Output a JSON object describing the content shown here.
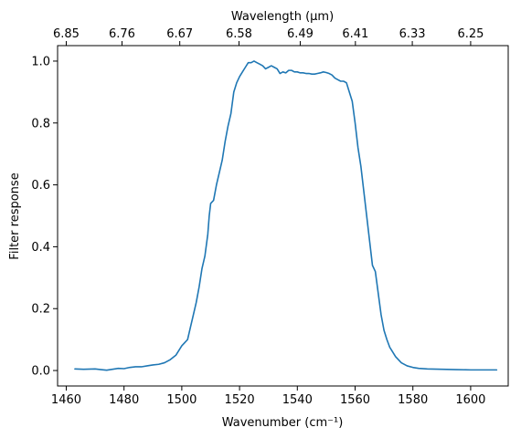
{
  "chart_data": {
    "type": "line",
    "title": "",
    "xlabel": "Wavenumber (cm⁻¹)",
    "ylabel": "Filter response",
    "top_xlabel": "Wavelength (μm)",
    "xlim": [
      1457,
      1613
    ],
    "ylim": [
      -0.05,
      1.05
    ],
    "xticks": [
      1460,
      1480,
      1500,
      1520,
      1540,
      1560,
      1580,
      1600
    ],
    "xtick_labels": [
      "1460",
      "1480",
      "1500",
      "1520",
      "1540",
      "1560",
      "1580",
      "1600"
    ],
    "yticks": [
      0.0,
      0.2,
      0.4,
      0.6,
      0.8,
      1.0
    ],
    "ytick_labels": [
      "0.0",
      "0.2",
      "0.4",
      "0.6",
      "0.8",
      "1.0"
    ],
    "top_xticks": [
      1460,
      1479.3,
      1499.3,
      1519.8,
      1541.0,
      1560.1,
      1579.8,
      1600.0
    ],
    "top_xtick_labels": [
      "6.85",
      "6.76",
      "6.67",
      "6.58",
      "6.49",
      "6.41",
      "6.33",
      "6.25"
    ],
    "grid": false,
    "line_color": "#1f77b4",
    "series": [
      {
        "x": [
          1463,
          1466,
          1470,
          1472,
          1474,
          1476,
          1478,
          1480,
          1482,
          1484,
          1486,
          1488,
          1490,
          1492,
          1494,
          1496,
          1498,
          1500,
          1501,
          1502,
          1503,
          1504,
          1505,
          1506,
          1507,
          1508,
          1509,
          1509.5,
          1510,
          1511,
          1512,
          1513,
          1514,
          1515,
          1516,
          1517,
          1518,
          1519,
          1520,
          1521,
          1522,
          1523,
          1524,
          1525,
          1526,
          1527,
          1528,
          1529,
          1530,
          1531,
          1532,
          1533,
          1534,
          1535,
          1536,
          1537,
          1538,
          1539,
          1540,
          1541,
          1542,
          1543,
          1544,
          1545,
          1546,
          1547,
          1548,
          1549,
          1550,
          1551,
          1552,
          1553,
          1554,
          1555,
          1556,
          1557,
          1558,
          1559,
          1560,
          1561,
          1562,
          1563,
          1564,
          1565,
          1566,
          1567,
          1568,
          1569,
          1570,
          1571,
          1572,
          1573,
          1574,
          1575,
          1576,
          1578,
          1580,
          1582,
          1585,
          1590,
          1595,
          1600,
          1605,
          1609
        ],
        "y": [
          0.005,
          0.004,
          0.005,
          0.003,
          0.001,
          0.004,
          0.007,
          0.006,
          0.01,
          0.012,
          0.012,
          0.015,
          0.018,
          0.02,
          0.025,
          0.035,
          0.05,
          0.08,
          0.09,
          0.1,
          0.14,
          0.18,
          0.22,
          0.27,
          0.33,
          0.37,
          0.44,
          0.5,
          0.54,
          0.55,
          0.6,
          0.64,
          0.68,
          0.74,
          0.79,
          0.83,
          0.9,
          0.93,
          0.95,
          0.965,
          0.98,
          0.995,
          0.995,
          1.0,
          0.995,
          0.99,
          0.985,
          0.975,
          0.98,
          0.985,
          0.98,
          0.975,
          0.96,
          0.965,
          0.962,
          0.97,
          0.97,
          0.965,
          0.965,
          0.962,
          0.962,
          0.96,
          0.96,
          0.958,
          0.958,
          0.96,
          0.962,
          0.965,
          0.963,
          0.96,
          0.955,
          0.945,
          0.94,
          0.935,
          0.935,
          0.93,
          0.9,
          0.87,
          0.8,
          0.72,
          0.66,
          0.58,
          0.5,
          0.42,
          0.34,
          0.32,
          0.25,
          0.18,
          0.13,
          0.1,
          0.075,
          0.06,
          0.045,
          0.035,
          0.025,
          0.015,
          0.01,
          0.007,
          0.005,
          0.004,
          0.003,
          0.002,
          0.002,
          0.002
        ]
      }
    ]
  }
}
